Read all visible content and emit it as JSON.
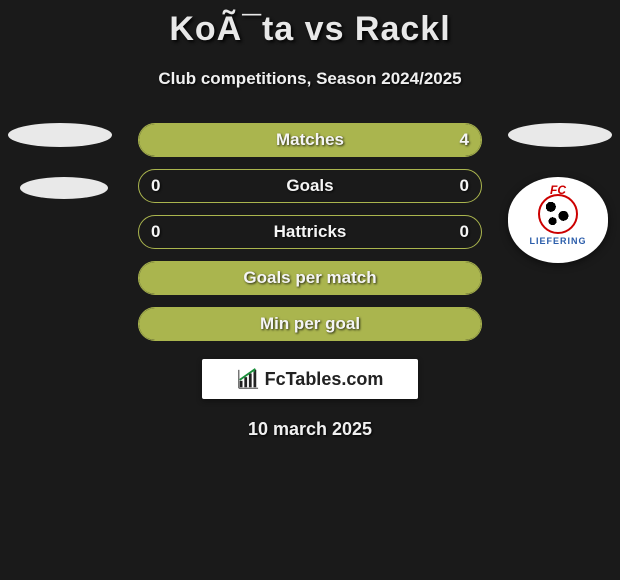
{
  "title": "KoÃ¯ta vs Rackl",
  "subtitle": "Club competitions, Season 2024/2025",
  "date": "10 march 2025",
  "branding_text": "FcTables.com",
  "club_badge": {
    "top": "FC",
    "name": "LIEFERING"
  },
  "colors": {
    "background": "#1a1a1a",
    "bar_fill": "#aab54e",
    "bar_border": "#aab54e",
    "text": "#f0f0f0",
    "ellipse": "#e9e9e9",
    "branding_bg": "#ffffff"
  },
  "rows": [
    {
      "label": "Matches",
      "left": "",
      "right": "4",
      "fill_pct": 100
    },
    {
      "label": "Goals",
      "left": "0",
      "right": "0",
      "fill_pct": 0
    },
    {
      "label": "Hattricks",
      "left": "0",
      "right": "0",
      "fill_pct": 0
    },
    {
      "label": "Goals per match",
      "left": "",
      "right": "",
      "fill_pct": 100
    },
    {
      "label": "Min per goal",
      "left": "",
      "right": "",
      "fill_pct": 100
    }
  ]
}
